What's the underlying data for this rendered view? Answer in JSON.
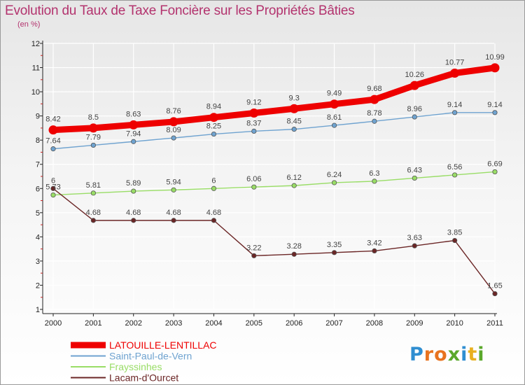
{
  "page": {
    "title": "Evolution du Taux de Taxe Foncière sur les Propriétés Bâties",
    "subtitle": "(en %)"
  },
  "logo": {
    "text": "Proxiti",
    "letter_colors": [
      "#2f8ed1",
      "#e8731f",
      "#e8731f",
      "#5aa82b",
      "#2f8ed1",
      "#e8b01f",
      "#5aa82b"
    ]
  },
  "chart_data": {
    "type": "line",
    "title": "Evolution du Taux de Taxe Foncière sur les Propriétés Bâties",
    "ylabel": "(en %)",
    "xlabel": "",
    "x": [
      "2000",
      "2001",
      "2002",
      "2003",
      "2004",
      "2005",
      "2006",
      "2007",
      "2008",
      "2009",
      "2010",
      "2011"
    ],
    "ylim": [
      1,
      12
    ],
    "yticks": [
      1,
      2,
      3,
      4,
      5,
      6,
      7,
      8,
      9,
      10,
      11,
      12
    ],
    "grid": true,
    "legend_position": "bottom-left",
    "series": [
      {
        "name": "LATOUILLE-LENTILLAC",
        "color": "#ee0000",
        "values": [
          8.42,
          8.5,
          8.63,
          8.76,
          8.94,
          9.12,
          9.3,
          9.49,
          9.68,
          10.26,
          10.77,
          10.99
        ],
        "labels": [
          "8.42",
          "8.5",
          "8.63",
          "8.76",
          "8.94",
          "9.12",
          "9.3",
          "9.49",
          "9.68",
          "10.26",
          "10.77",
          "10.99"
        ],
        "emphasis": true
      },
      {
        "name": "Saint-Paul-de-Vern",
        "color": "#6fa3d0",
        "values": [
          7.64,
          7.79,
          7.94,
          8.09,
          8.25,
          8.37,
          8.45,
          8.61,
          8.78,
          8.96,
          9.14,
          9.14
        ],
        "labels": [
          "7.64",
          "7.79",
          "7.94",
          "8.09",
          "8.25",
          "8.37",
          "8.45",
          "8.61",
          "8.78",
          "8.96",
          "9.14",
          "9.14"
        ],
        "emphasis": false
      },
      {
        "name": "Frayssinhes",
        "color": "#99dd66",
        "values": [
          5.73,
          5.81,
          5.89,
          5.94,
          6.0,
          6.06,
          6.12,
          6.24,
          6.3,
          6.43,
          6.56,
          6.69
        ],
        "labels": [
          "5.73",
          "5.81",
          "5.89",
          "5.94",
          "6",
          "6.06",
          "6.12",
          "6.24",
          "6.3",
          "6.43",
          "6.56",
          "6.69"
        ],
        "emphasis": false
      },
      {
        "name": "Lacam-d'Ourcet",
        "color": "#6b2626",
        "values": [
          6.0,
          4.68,
          4.68,
          4.68,
          4.68,
          3.22,
          3.28,
          3.35,
          3.42,
          3.63,
          3.85,
          1.65
        ],
        "labels": [
          "6",
          "4.68",
          "4.68",
          "4.68",
          "4.68",
          "3.22",
          "3.28",
          "3.35",
          "3.42",
          "3.63",
          "3.85",
          "1.65"
        ],
        "emphasis": false
      }
    ]
  }
}
